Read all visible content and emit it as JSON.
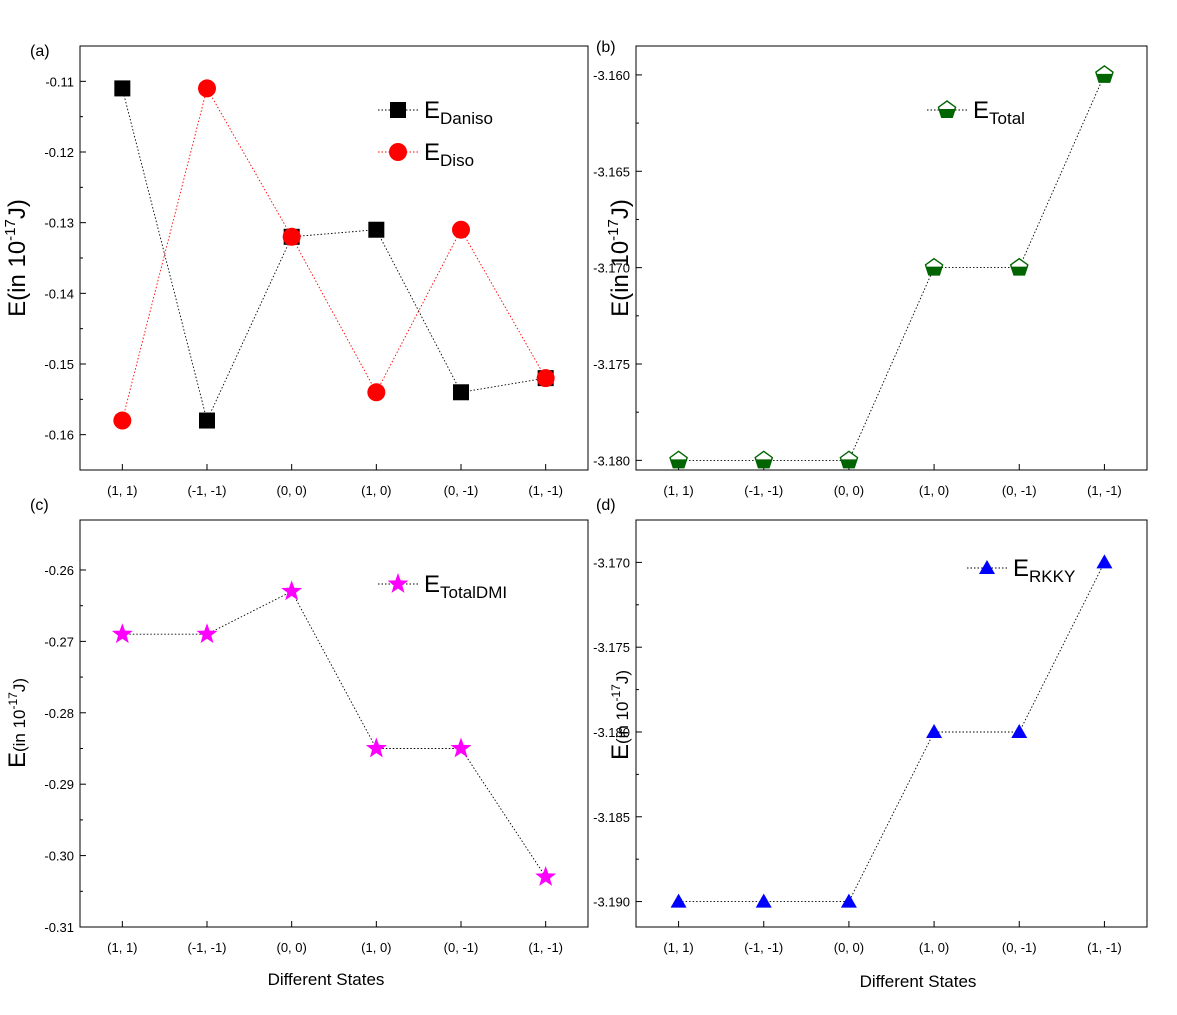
{
  "chart_data": [
    {
      "panel_label": "(a)",
      "type": "line",
      "categories": [
        "(1, 1)",
        "(-1, -1)",
        "(0, 0)",
        "(1, 0)",
        "(0, -1)",
        "(1, -1)"
      ],
      "xlabel": "",
      "ylabel": {
        "base": "E(in 10",
        "sup": "-17",
        "tail": "J)"
      },
      "ylim": [
        -0.165,
        -0.105
      ],
      "yticks": [
        -0.11,
        -0.12,
        -0.13,
        -0.14,
        -0.15,
        -0.16
      ],
      "ytick_labels": [
        "-0.11",
        "-0.12",
        "-0.13",
        "-0.14",
        "-0.15",
        "-0.16"
      ],
      "legend_position": "top-right",
      "series": [
        {
          "name": {
            "base": "E",
            "sub": "Daniso"
          },
          "marker": "square",
          "color": "#000000",
          "values": [
            -0.111,
            -0.158,
            -0.132,
            -0.131,
            -0.154,
            -0.152
          ]
        },
        {
          "name": {
            "base": "E",
            "sub": "Diso"
          },
          "marker": "circle",
          "color": "#ff0000",
          "values": [
            -0.158,
            -0.111,
            -0.132,
            -0.154,
            -0.131,
            -0.152
          ]
        }
      ]
    },
    {
      "panel_label": "(b)",
      "type": "line",
      "categories": [
        "(1, 1)",
        "(-1, -1)",
        "(0, 0)",
        "(1, 0)",
        "(0, -1)",
        "(1, -1)"
      ],
      "xlabel": "",
      "ylabel": {
        "base": "E(in 10",
        "sup": "-17",
        "tail": "J)"
      },
      "ylim": [
        -3.1805,
        -3.1585
      ],
      "yticks": [
        -3.16,
        -3.165,
        -3.17,
        -3.175,
        -3.18
      ],
      "ytick_labels": [
        "-3.160",
        "-3.165",
        "-3.170",
        "-3.175",
        "-3.180"
      ],
      "legend_position": "top-right",
      "series": [
        {
          "name": {
            "base": "E",
            "sub": "Total"
          },
          "marker": "pentagon",
          "color": "#006400",
          "values": [
            -3.18,
            -3.18,
            -3.18,
            -3.17,
            -3.17,
            -3.16
          ]
        }
      ]
    },
    {
      "panel_label": "(c)",
      "type": "line",
      "categories": [
        "(1, 1)",
        "(-1, -1)",
        "(0, 0)",
        "(1, 0)",
        "(0, -1)",
        "(1, -1)"
      ],
      "xlabel": "Different States",
      "ylabel": {
        "base": "E",
        "small": "(in 10",
        "sup": "-17",
        "tail": "J)"
      },
      "ylim": [
        -0.31,
        -0.253
      ],
      "yticks": [
        -0.26,
        -0.27,
        -0.28,
        -0.29,
        -0.3,
        -0.31
      ],
      "ytick_labels": [
        "-0.26",
        "-0.27",
        "-0.28",
        "-0.29",
        "-0.30",
        "-0.31"
      ],
      "legend_position": "top-right",
      "series": [
        {
          "name": {
            "base": "E",
            "sub": "TotalDMI"
          },
          "marker": "star",
          "color": "#ff00ff",
          "values": [
            -0.269,
            -0.269,
            -0.263,
            -0.285,
            -0.285,
            -0.303
          ]
        }
      ]
    },
    {
      "panel_label": "(d)",
      "type": "line",
      "categories": [
        "(1, 1)",
        "(-1, -1)",
        "(0, 0)",
        "(1, 0)",
        "(0, -1)",
        "(1, -1)"
      ],
      "xlabel": "Different States",
      "ylabel": {
        "base": "E",
        "small": "(in 10",
        "sup": "-17",
        "tail": "J)"
      },
      "ylim": [
        -3.1915,
        -3.1675
      ],
      "yticks": [
        -3.17,
        -3.175,
        -3.18,
        -3.185,
        -3.19
      ],
      "ytick_labels": [
        "-3.170",
        "-3.175",
        "-3.180",
        "-3.185",
        "-3.190"
      ],
      "legend_position": "top-right",
      "series": [
        {
          "name": {
            "base": "E",
            "sub": "RKKY"
          },
          "marker": "triangle",
          "color": "#0000ff",
          "values": [
            -3.19,
            -3.19,
            -3.19,
            -3.18,
            -3.18,
            -3.17
          ]
        }
      ]
    }
  ]
}
